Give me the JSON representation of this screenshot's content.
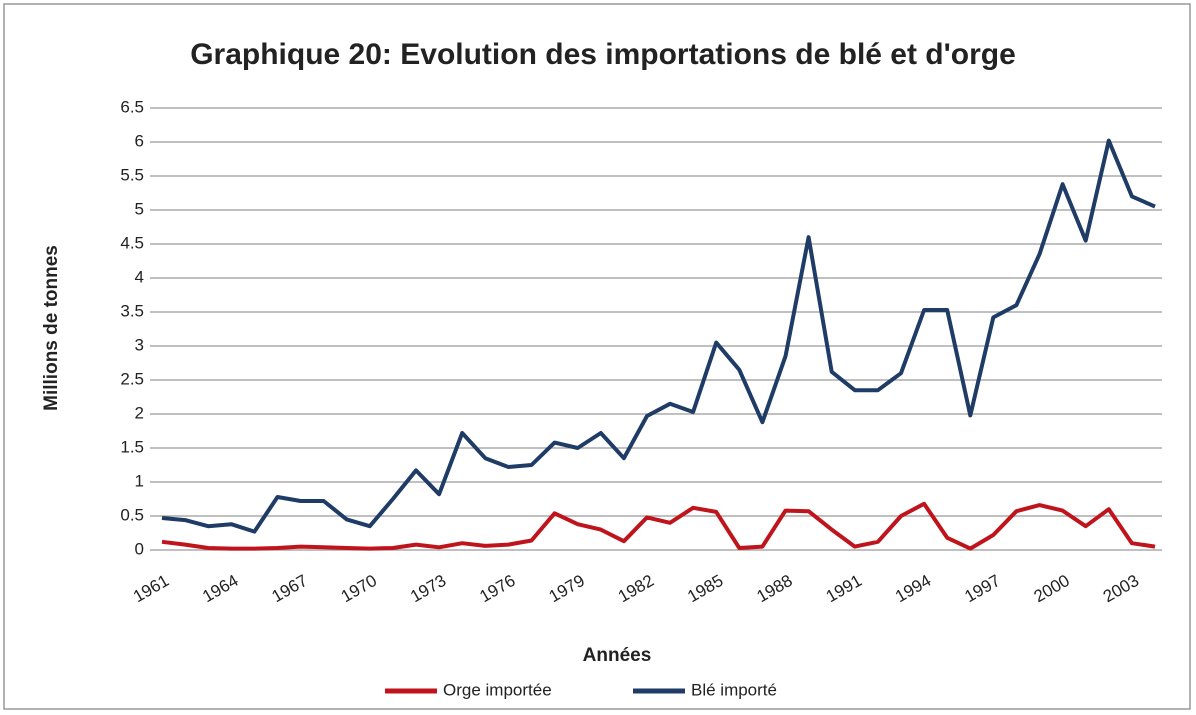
{
  "chart_data": {
    "type": "line",
    "title": "Graphique 20: Evolution des importations de blé et d'orge",
    "x_label": "Années",
    "y_label": "Millions de tonnes",
    "categories": [
      "1961",
      null,
      null,
      "1964",
      null,
      null,
      "1967",
      null,
      null,
      "1970",
      null,
      null,
      "1973",
      null,
      null,
      "1976",
      null,
      null,
      "1979",
      null,
      null,
      "1982",
      null,
      null,
      "1985",
      null,
      null,
      "1988",
      null,
      null,
      "1991",
      null,
      null,
      "1994",
      null,
      null,
      "1997",
      null,
      null,
      "2000",
      null,
      null,
      "2003",
      null
    ],
    "series": [
      {
        "name": "Orge importée",
        "color": "#c0141c",
        "values": [
          0.12,
          0.08,
          0.03,
          0.02,
          0.02,
          0.03,
          0.05,
          0.04,
          0.03,
          0.02,
          0.03,
          0.08,
          0.04,
          0.1,
          0.06,
          0.08,
          0.14,
          0.54,
          0.38,
          0.3,
          0.13,
          0.48,
          0.4,
          0.62,
          0.56,
          0.03,
          0.05,
          0.58,
          0.57,
          0.3,
          0.05,
          0.12,
          0.5,
          0.68,
          0.18,
          0.02,
          0.22,
          0.57,
          0.66,
          0.58,
          0.35,
          0.6,
          0.1,
          0.05
        ]
      },
      {
        "name": "Blé importé",
        "color": "#1f3c66",
        "values": [
          0.47,
          0.44,
          0.35,
          0.38,
          0.27,
          0.78,
          0.72,
          0.72,
          0.45,
          0.35,
          0.75,
          1.17,
          0.82,
          1.72,
          1.35,
          1.22,
          1.25,
          1.58,
          1.5,
          1.72,
          1.35,
          1.97,
          2.15,
          2.03,
          3.05,
          2.65,
          1.88,
          2.85,
          4.6,
          2.62,
          2.35,
          2.35,
          2.6,
          3.53,
          3.53,
          1.98,
          3.42,
          3.6,
          4.35,
          5.38,
          4.55,
          6.02,
          5.2,
          5.05
        ]
      }
    ],
    "ylim": [
      0,
      6.5
    ],
    "yticks": [
      0,
      0.5,
      1,
      1.5,
      2,
      2.5,
      3,
      3.5,
      4,
      4.5,
      5,
      5.5,
      6,
      6.5
    ],
    "grid": true,
    "legend": "bottom"
  }
}
